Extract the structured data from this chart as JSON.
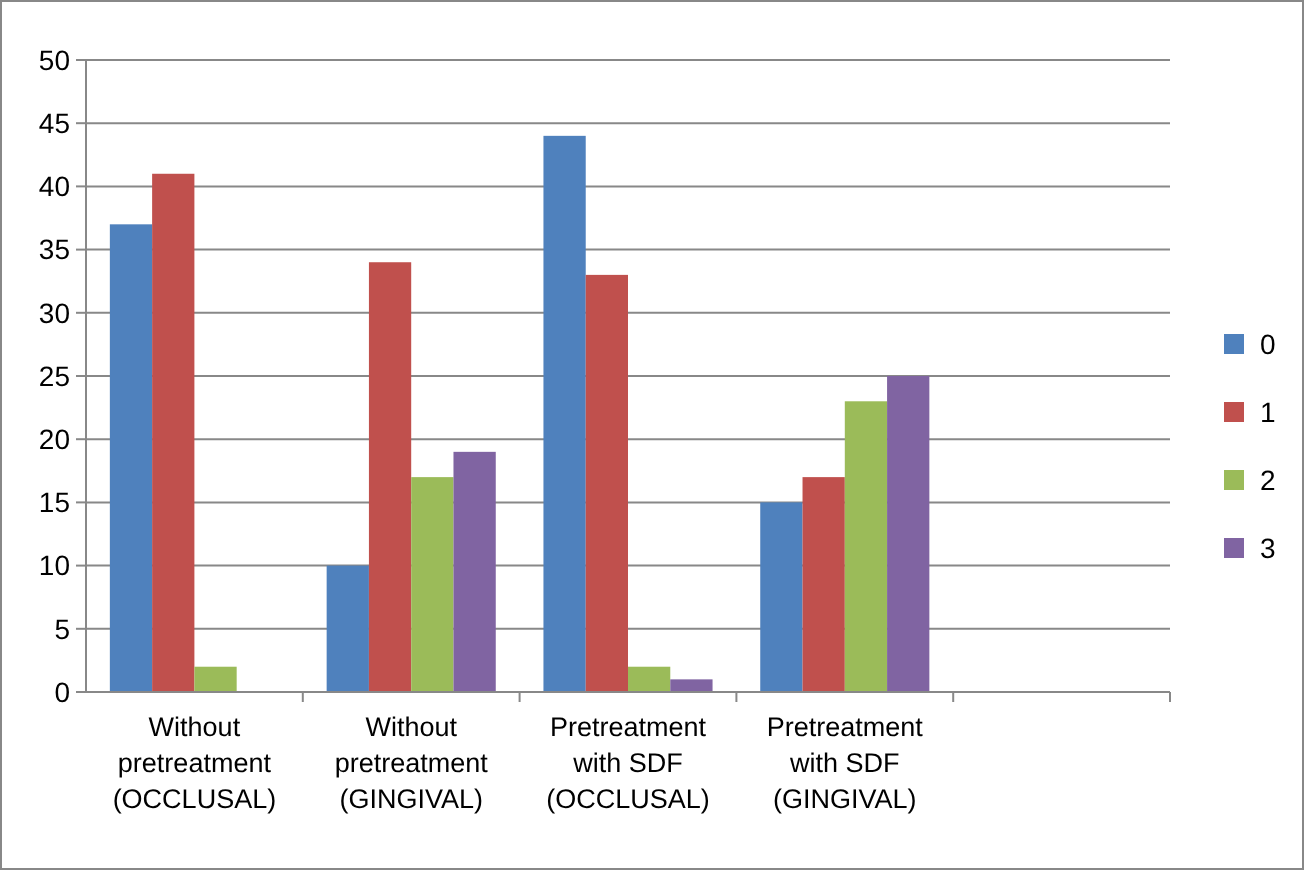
{
  "chart_data": {
    "type": "bar",
    "categories": [
      "Without\npretreatment\n(OCCLUSAL)",
      "Without\npretreatment\n(GINGIVAL)",
      "Pretreatment\nwith SDF\n(OCCLUSAL)",
      "Pretreatment\nwith SDF\n(GINGIVAL)",
      null
    ],
    "series": [
      {
        "name": "0",
        "color": "#4f81bd",
        "values": [
          37,
          10,
          44,
          15,
          null
        ]
      },
      {
        "name": "1",
        "color": "#c0504d",
        "values": [
          41,
          34,
          33,
          17,
          null
        ]
      },
      {
        "name": "2",
        "color": "#9bbb59",
        "values": [
          2,
          17,
          2,
          23,
          null
        ]
      },
      {
        "name": "3",
        "color": "#8064a2",
        "values": [
          0,
          19,
          1,
          25,
          null
        ]
      }
    ],
    "ylim": [
      0,
      50
    ],
    "yticks": [
      0,
      5,
      10,
      15,
      20,
      25,
      30,
      35,
      40,
      45,
      50
    ],
    "grid": "y",
    "legend": "right"
  }
}
